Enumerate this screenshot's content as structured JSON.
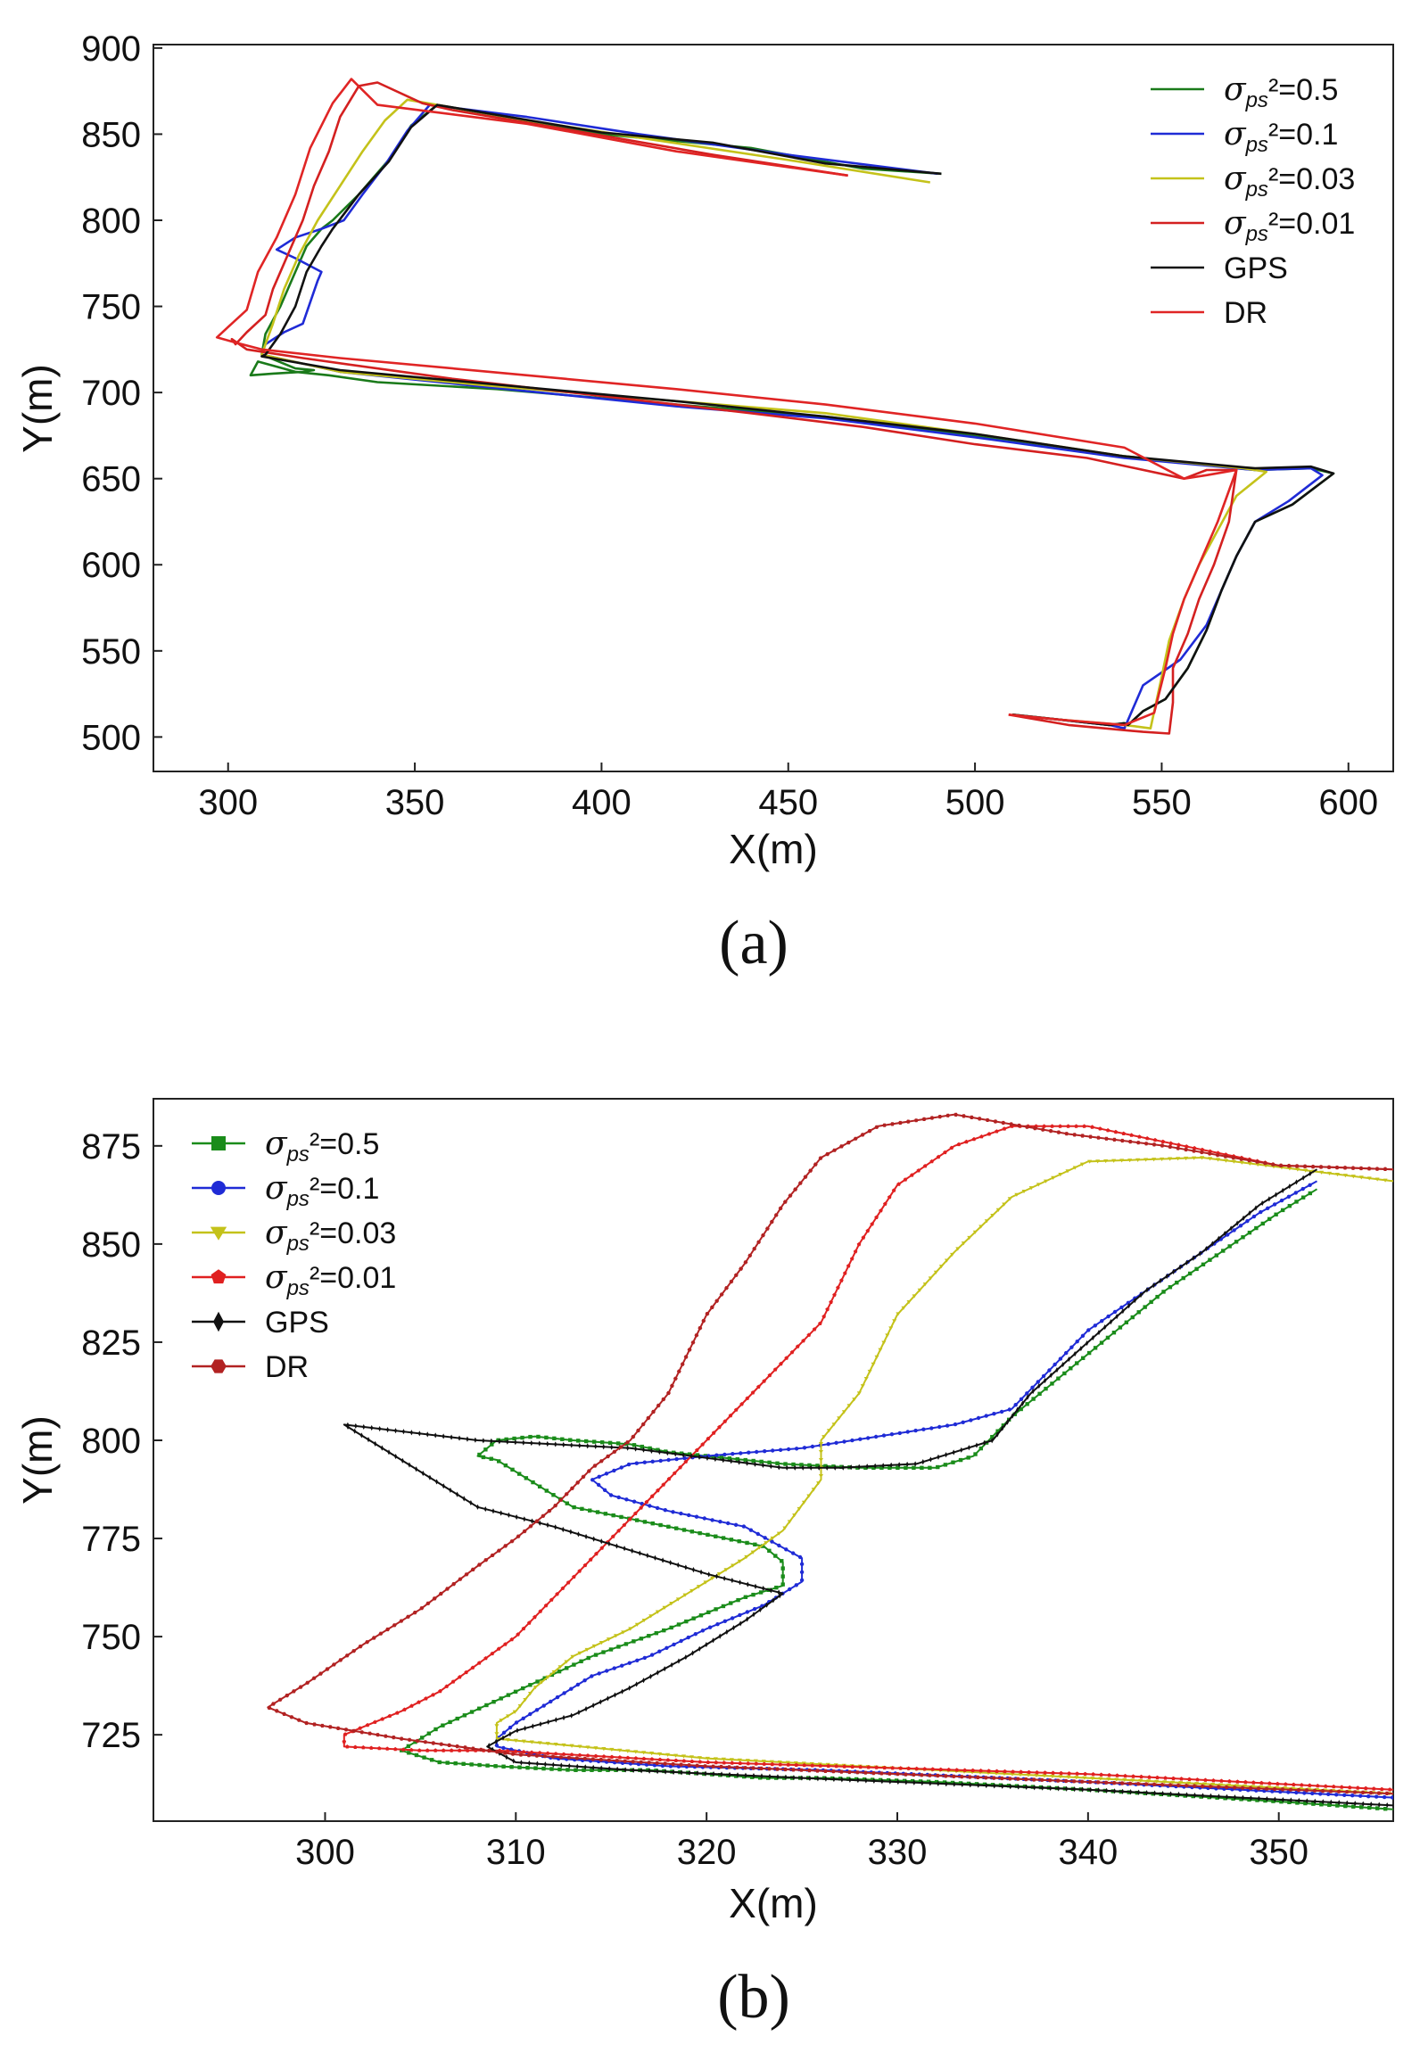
{
  "chart_data": [
    {
      "type": "line",
      "panel_label": "(a)",
      "xlabel": "X(m)",
      "ylabel": "Y(m)",
      "xlim": [
        280,
        612
      ],
      "ylim": [
        480,
        902
      ],
      "xticks": [
        300,
        350,
        400,
        450,
        500,
        550,
        600
      ],
      "yticks": [
        500,
        550,
        600,
        650,
        700,
        750,
        800,
        850,
        900
      ],
      "legend_position": "top-right",
      "series": [
        {
          "name": "σ_ps²=0.5",
          "label_main": "σ",
          "label_sub": "ps",
          "label_rest": "²=0.5",
          "color": "#1a7a1a",
          "marker": "none",
          "x": [
            491,
            470,
            440,
            400,
            356,
            349,
            343,
            335,
            328,
            325,
            321,
            318,
            314,
            310,
            309,
            318,
            323,
            320,
            312,
            306,
            308,
            318,
            327,
            340,
            372,
            420,
            460,
            500,
            540,
            575,
            590,
            596,
            585,
            575,
            570,
            566,
            562,
            557,
            551,
            545,
            541,
            540,
            536,
            523,
            510
          ],
          "y": [
            827,
            830,
            842,
            850,
            867,
            855,
            835,
            815,
            800,
            795,
            785,
            770,
            750,
            734,
            722,
            714,
            713,
            712,
            711,
            710,
            718,
            712,
            710,
            706,
            702,
            693,
            686,
            675,
            663,
            655,
            656,
            653,
            635,
            625,
            605,
            585,
            562,
            540,
            522,
            515,
            507,
            508,
            507,
            510,
            513
          ]
        },
        {
          "name": "σ_ps²=0.1",
          "label_main": "σ",
          "label_sub": "ps",
          "label_rest": "²=0.1",
          "color": "#1f2bd6",
          "marker": "none",
          "x": [
            490,
            450,
            410,
            380,
            354,
            348,
            342,
            336,
            331,
            325,
            318,
            313,
            318,
            325,
            324,
            320,
            315,
            310,
            309,
            330,
            370,
            420,
            460,
            500,
            540,
            575,
            590,
            593,
            584,
            575,
            570,
            566,
            562,
            555,
            545,
            540,
            536,
            523,
            510
          ],
          "y": [
            827,
            838,
            850,
            860,
            867,
            852,
            832,
            815,
            800,
            795,
            790,
            783,
            778,
            770,
            765,
            740,
            735,
            728,
            722,
            712,
            703,
            692,
            685,
            674,
            662,
            655,
            656,
            652,
            637,
            625,
            605,
            585,
            565,
            545,
            530,
            505,
            507,
            510,
            513
          ]
        },
        {
          "name": "σ_ps²=0.03",
          "label_main": "σ",
          "label_sub": "ps",
          "label_rest": "²=0.03",
          "color": "#c4c21a",
          "marker": "none",
          "x": [
            488,
            450,
            410,
            380,
            348,
            342,
            336,
            330,
            324,
            319,
            315,
            312,
            310,
            309,
            330,
            370,
            420,
            460,
            500,
            540,
            572,
            578,
            570,
            565,
            560,
            556,
            552,
            550,
            547,
            540,
            523,
            510
          ],
          "y": [
            822,
            835,
            848,
            858,
            870,
            858,
            840,
            820,
            800,
            780,
            760,
            740,
            728,
            722,
            712,
            704,
            695,
            688,
            676,
            663,
            656,
            654,
            640,
            620,
            600,
            580,
            556,
            535,
            505,
            507,
            510,
            513
          ]
        },
        {
          "name": "σ_ps²=0.01",
          "label_main": "σ",
          "label_sub": "ps",
          "label_rest": "²=0.01",
          "color": "#d42020",
          "marker": "none",
          "x": [
            466,
            430,
            390,
            360,
            352,
            340,
            335,
            330,
            327,
            323,
            320,
            316,
            312,
            310,
            305,
            302,
            301,
            305,
            320,
            360,
            400,
            440,
            470,
            500,
            530,
            556,
            562,
            570,
            568,
            564,
            560,
            557,
            553,
            553,
            552,
            545,
            525,
            509
          ],
          "y": [
            826,
            838,
            853,
            864,
            868,
            880,
            878,
            860,
            840,
            820,
            800,
            780,
            760,
            745,
            735,
            728,
            731,
            725,
            720,
            708,
            698,
            688,
            680,
            670,
            662,
            650,
            655,
            655,
            625,
            600,
            580,
            560,
            540,
            520,
            502,
            503,
            507,
            513
          ]
        },
        {
          "name": "GPS",
          "label_main": "GPS",
          "color": "#111111",
          "marker": "none",
          "x": [
            491,
            460,
            430,
            400,
            356,
            349,
            343,
            335,
            328,
            325,
            321,
            318,
            314,
            310,
            309,
            330,
            370,
            420,
            460,
            500,
            540,
            575,
            590,
            596,
            585,
            575,
            570,
            566,
            562,
            557,
            551,
            545,
            541,
            540,
            536,
            523,
            510
          ],
          "y": [
            827,
            833,
            845,
            851,
            867,
            854,
            834,
            815,
            795,
            785,
            770,
            750,
            734,
            722,
            721,
            713,
            705,
            695,
            686,
            676,
            663,
            656,
            657,
            653,
            635,
            625,
            605,
            585,
            562,
            540,
            522,
            515,
            507,
            508,
            507,
            510,
            513
          ]
        },
        {
          "name": "DR",
          "label_main": "DR",
          "color": "#e02525",
          "marker": "none",
          "x": [
            466,
            420,
            380,
            340,
            333,
            328,
            322,
            318,
            313,
            308,
            305,
            300,
            297,
            302,
            309,
            330,
            370,
            420,
            460,
            500,
            540,
            556,
            562,
            570,
            565,
            560,
            556,
            553,
            551,
            548,
            540,
            523,
            509
          ],
          "y": [
            826,
            840,
            856,
            867,
            882,
            868,
            842,
            815,
            790,
            770,
            748,
            738,
            732,
            729,
            725,
            720,
            712,
            702,
            693,
            682,
            668,
            650,
            652,
            655,
            625,
            600,
            580,
            560,
            540,
            514,
            507,
            510,
            513
          ]
        }
      ]
    },
    {
      "type": "line",
      "panel_label": "(b)",
      "xlabel": "X(m)",
      "ylabel": "Y(m)",
      "xlim": [
        291,
        356
      ],
      "ylim": [
        703,
        887
      ],
      "xticks": [
        300,
        310,
        320,
        330,
        340,
        350
      ],
      "yticks": [
        725,
        750,
        775,
        800,
        825,
        850,
        875
      ],
      "legend_position": "top-left",
      "series": [
        {
          "name": "σ_ps²=0.5",
          "label_main": "σ",
          "label_sub": "ps",
          "label_rest": "²=0.5",
          "color": "#1a8c1a",
          "marker": "square",
          "x": [
            352,
            350,
            347,
            344,
            341,
            338,
            336,
            334,
            332,
            328,
            324,
            320,
            318,
            316,
            313,
            311,
            309,
            308,
            309,
            311,
            313,
            316,
            319,
            321,
            323,
            324,
            324,
            322,
            318,
            314,
            310,
            306,
            304,
            306,
            309,
            313,
            317,
            320,
            323,
            326,
            332,
            340,
            350,
            356
          ],
          "y": [
            864,
            858,
            848,
            838,
            826,
            814,
            806,
            796,
            793,
            793,
            794,
            796,
            797,
            799,
            800,
            801,
            800,
            796,
            795,
            789,
            783,
            780,
            777,
            775,
            773,
            769,
            763,
            760,
            752,
            745,
            736,
            727,
            721,
            718,
            717,
            716,
            716,
            715,
            714,
            714,
            713,
            711,
            708,
            706
          ]
        },
        {
          "name": "σ_ps²=0.1",
          "label_main": "σ",
          "label_sub": "ps",
          "label_rest": "²=0.1",
          "color": "#1f2bd6",
          "marker": "circle",
          "x": [
            352,
            349,
            346,
            343,
            340,
            338,
            336,
            333,
            329,
            325,
            320,
            316,
            314,
            315,
            318,
            322,
            325,
            325,
            323,
            320,
            317,
            314,
            312,
            310,
            309,
            309,
            312,
            318,
            326,
            340,
            356
          ],
          "y": [
            866,
            858,
            848,
            838,
            828,
            818,
            808,
            804,
            801,
            798,
            796,
            794,
            790,
            786,
            782,
            778,
            770,
            764,
            758,
            752,
            745,
            740,
            734,
            728,
            724,
            722,
            719,
            717,
            716,
            713,
            709
          ]
        },
        {
          "name": "σ_ps²=0.03",
          "label_main": "σ",
          "label_sub": "ps",
          "label_rest": "²=0.03",
          "color": "#c4c21a",
          "marker": "triangle-down",
          "x": [
            356,
            346,
            340,
            336,
            333,
            330,
            328,
            326,
            326,
            324,
            322,
            320,
            318,
            316,
            313,
            311,
            310,
            309,
            309,
            320,
            340,
            356
          ],
          "y": [
            866,
            872,
            871,
            862,
            848,
            832,
            812,
            800,
            790,
            777,
            770,
            764,
            758,
            752,
            745,
            737,
            731,
            728,
            724,
            719,
            714,
            710
          ]
        },
        {
          "name": "σ_ps²=0.01",
          "label_main": "σ",
          "label_sub": "ps",
          "label_rest": "²=0.01",
          "color": "#e02020",
          "marker": "pentagon",
          "x": [
            356,
            350,
            345,
            340,
            336,
            333,
            330,
            328,
            326,
            323,
            320,
            318,
            316,
            314,
            312,
            310,
            308,
            306,
            304,
            302,
            301,
            301,
            305,
            309,
            320,
            340,
            356
          ],
          "y": [
            869,
            870,
            875,
            880,
            880,
            875,
            865,
            850,
            830,
            815,
            800,
            790,
            780,
            770,
            760,
            750,
            743,
            736,
            731,
            727,
            725,
            722,
            721,
            721,
            718,
            715,
            711
          ]
        },
        {
          "name": "GPS",
          "label_main": "GPS",
          "color": "#111111",
          "marker": "diamond",
          "x": [
            352,
            349,
            346,
            343,
            340,
            337,
            335,
            331,
            327,
            324,
            316,
            308,
            301,
            304,
            308,
            312,
            316,
            320,
            324,
            322,
            319,
            316,
            313,
            310,
            308.5,
            310,
            316,
            325,
            340,
            356
          ],
          "y": [
            869,
            860,
            848,
            838,
            825,
            812,
            800,
            794,
            793,
            793,
            798,
            800,
            804,
            795,
            783,
            778,
            772,
            766,
            761,
            754,
            745,
            737,
            730,
            726,
            722,
            718,
            716,
            714,
            711,
            707
          ]
        },
        {
          "name": "DR",
          "label_main": "DR",
          "color": "#b22222",
          "marker": "hexagon",
          "x": [
            356,
            350,
            344,
            339,
            333,
            329,
            326,
            324,
            322,
            320,
            319,
            318,
            316,
            314,
            312,
            310,
            308,
            305,
            302,
            299,
            297,
            299,
            304,
            310,
            320,
            340,
            356
          ],
          "y": [
            869,
            870,
            875,
            878,
            883,
            880,
            872,
            860,
            845,
            832,
            822,
            812,
            800,
            793,
            783,
            775,
            768,
            757,
            748,
            738,
            732,
            728,
            724,
            720,
            717,
            713,
            710
          ]
        }
      ]
    }
  ]
}
